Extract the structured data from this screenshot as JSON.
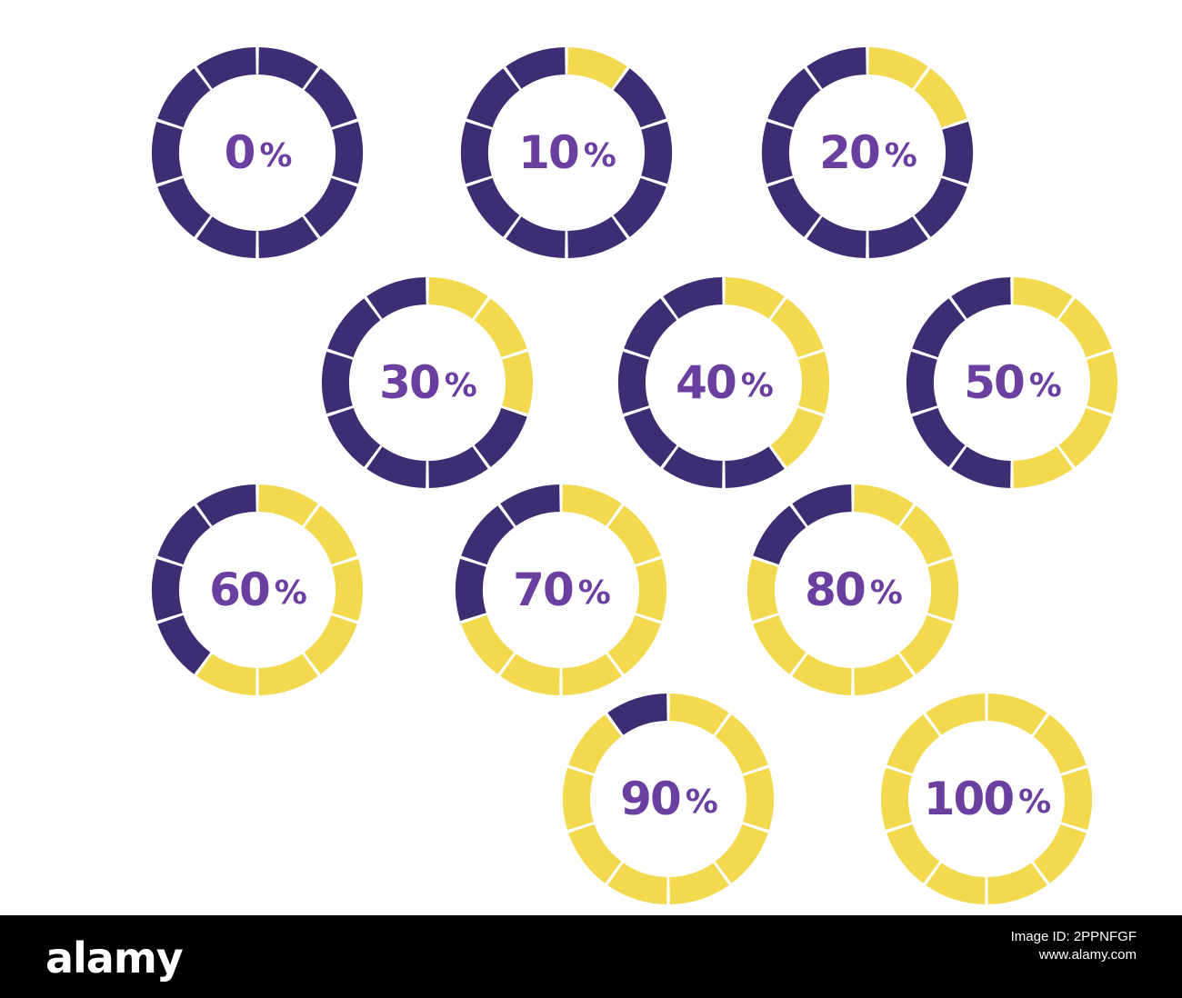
{
  "colors": {
    "filled": "#f2d94e",
    "empty": "#3e2d73",
    "label": "#6a3fa0",
    "background": "#ffffff"
  },
  "segments_per_ring": 10,
  "rings": [
    {
      "id": "r0",
      "value": "0",
      "unit": "%",
      "fraction": 0.0
    },
    {
      "id": "r10",
      "value": "10",
      "unit": "%",
      "fraction": 0.1
    },
    {
      "id": "r20",
      "value": "20",
      "unit": "%",
      "fraction": 0.2
    },
    {
      "id": "r30",
      "value": "30",
      "unit": "%",
      "fraction": 0.3
    },
    {
      "id": "r40",
      "value": "40",
      "unit": "%",
      "fraction": 0.4
    },
    {
      "id": "r50",
      "value": "50",
      "unit": "%",
      "fraction": 0.5
    },
    {
      "id": "r60",
      "value": "60",
      "unit": "%",
      "fraction": 0.6
    },
    {
      "id": "r70",
      "value": "70",
      "unit": "%",
      "fraction": 0.7
    },
    {
      "id": "r80",
      "value": "80",
      "unit": "%",
      "fraction": 0.8
    },
    {
      "id": "r90",
      "value": "90",
      "unit": "%",
      "fraction": 0.9
    },
    {
      "id": "r100",
      "value": "100",
      "unit": "%",
      "fraction": 1.0
    }
  ],
  "footer": {
    "logo": "alamy",
    "image_id": "Image ID: 2PPNFGF",
    "site": "www.alamy.com"
  }
}
